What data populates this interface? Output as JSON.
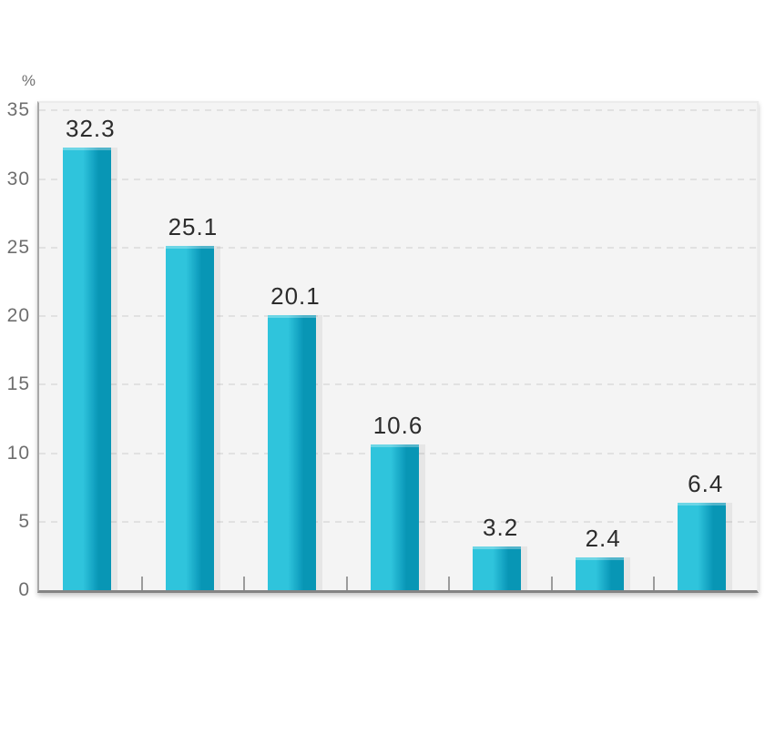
{
  "chart_data": {
    "type": "bar",
    "title": "",
    "xlabel": "",
    "ylabel": "%",
    "categories": [
      "",
      "",
      "",
      "",
      "",
      "",
      ""
    ],
    "values": [
      32.3,
      25.1,
      20.1,
      10.6,
      3.2,
      2.4,
      6.4
    ],
    "data_labels": [
      "32.3",
      "25.1",
      "20.1",
      "10.6",
      "3.2",
      "2.4",
      "6.4"
    ],
    "yticks": [
      0,
      5,
      10,
      15,
      20,
      25,
      30,
      35
    ],
    "ytick_labels": [
      "0",
      "5",
      "10",
      "15",
      "20",
      "25",
      "30",
      "35"
    ],
    "ylim": [
      0,
      35.6
    ],
    "grid": "horizontal-dashed",
    "legend": "none",
    "colors": {
      "bar_light": "#2fc4dc",
      "bar_dark": "#0896b5",
      "plot_background": "#f4f4f4",
      "gridline": "#e1e1e1",
      "axis_line": "#848484",
      "tick": "#9c9c9c",
      "value_label_text": "#2c2c2c",
      "axis_label_text": "#6e6e6e"
    }
  }
}
